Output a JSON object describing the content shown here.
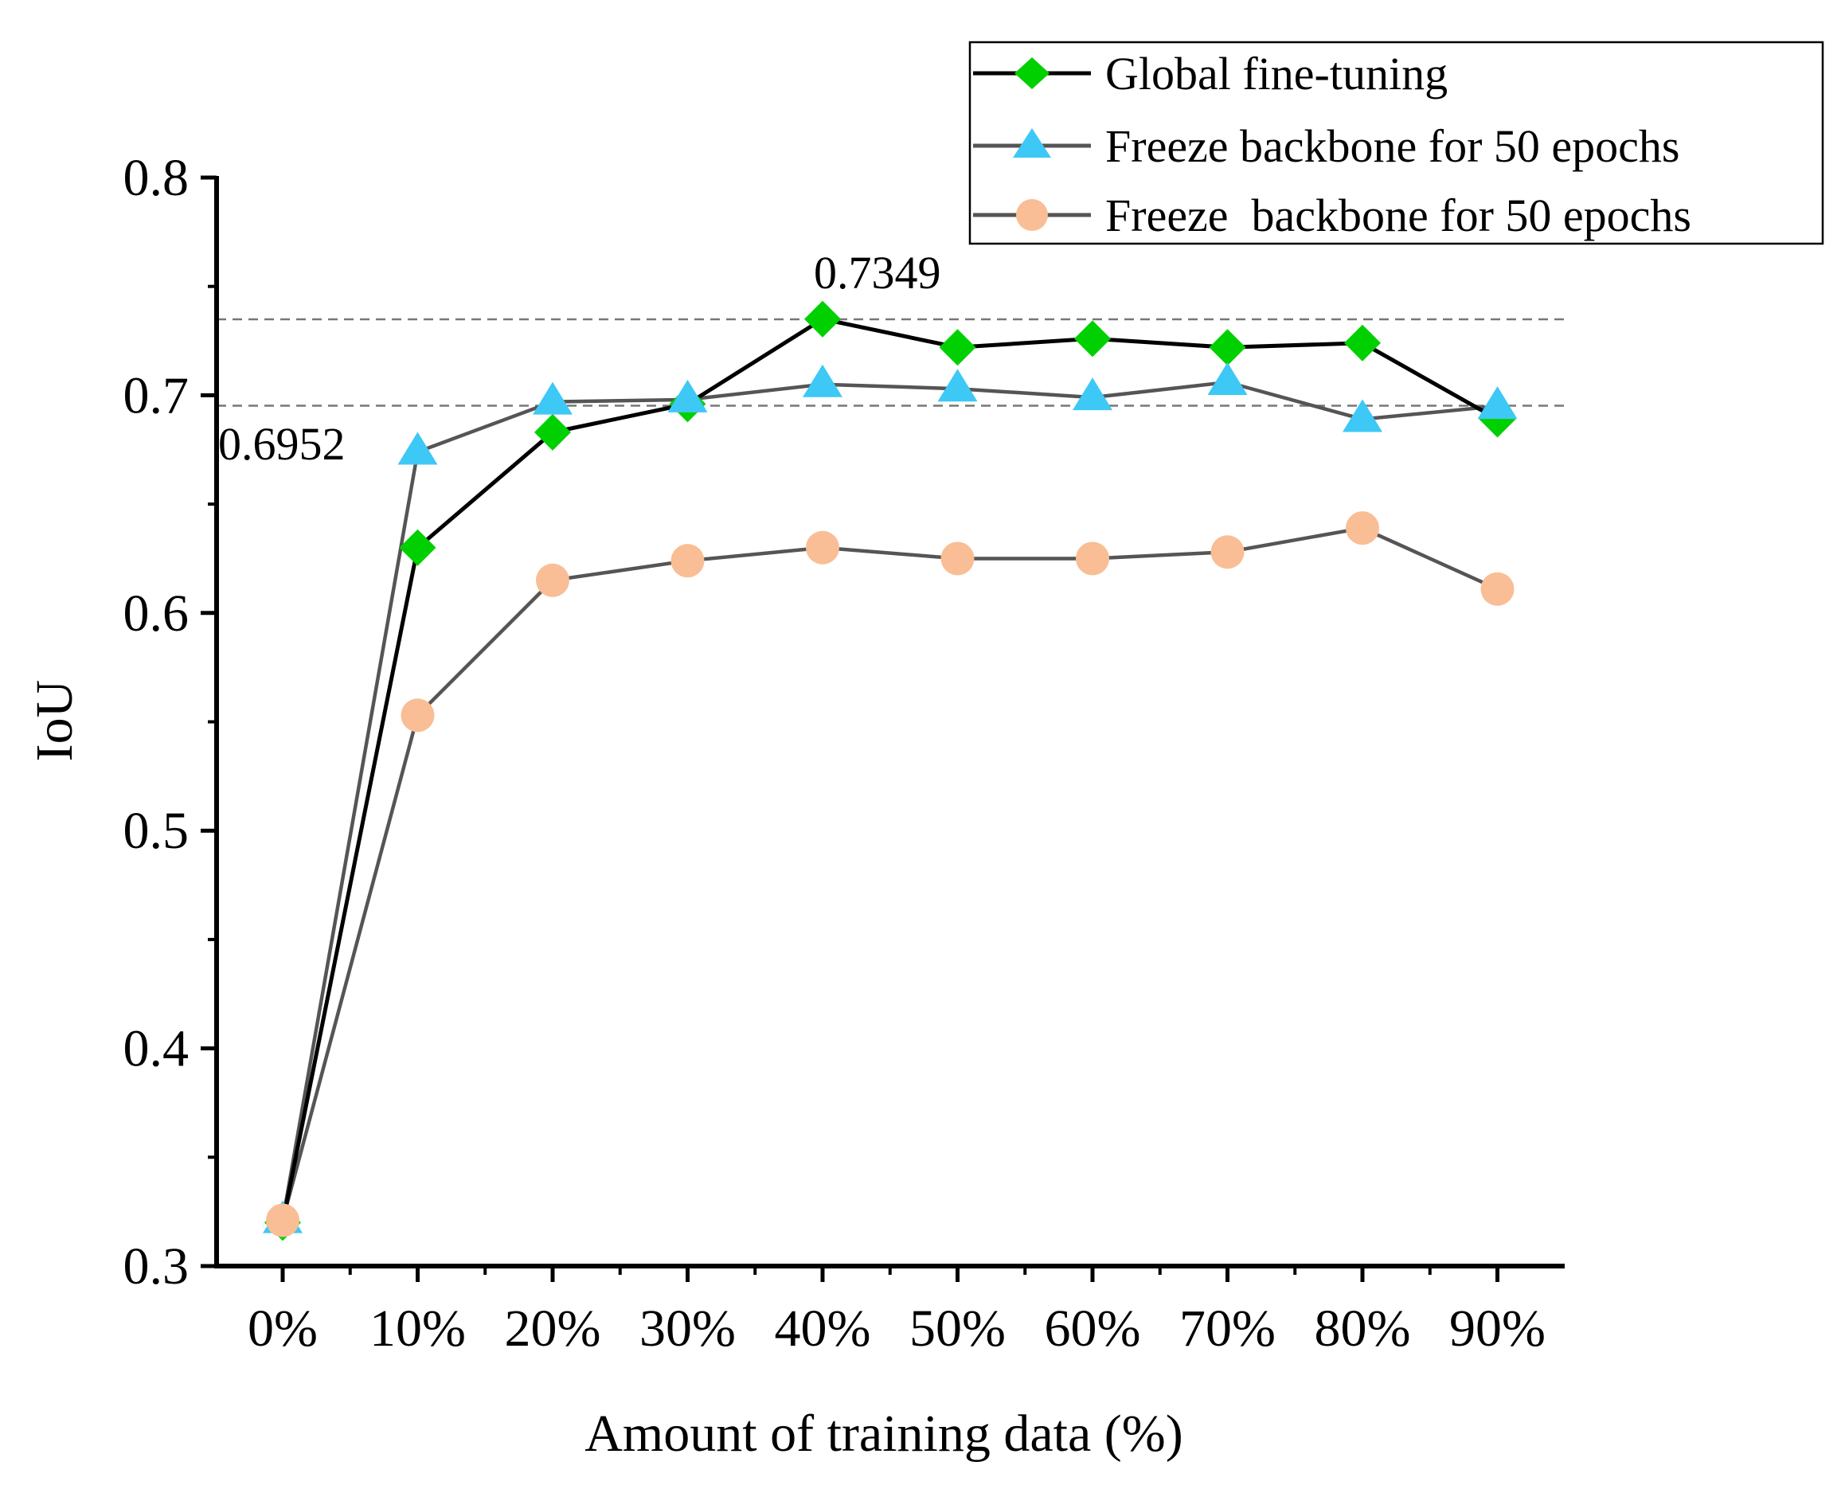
{
  "chart_data": {
    "type": "line",
    "xlabel": "Amount of training data (%)",
    "ylabel": "IoU",
    "categories": [
      "0%",
      "10%",
      "20%",
      "30%",
      "40%",
      "50%",
      "60%",
      "70%",
      "80%",
      "90%"
    ],
    "ylim": [
      0.3,
      0.8
    ],
    "yticks": [
      0.3,
      0.4,
      0.5,
      0.6,
      0.7,
      0.8
    ],
    "ytick_labels": [
      "0.3",
      "0.4",
      "0.5",
      "0.6",
      "0.7",
      "0.8"
    ],
    "grid": false,
    "legend_position": "top-right",
    "series": [
      {
        "name": "Global fine-tuning",
        "marker": "diamond",
        "marker_color": "#00d000",
        "line_color": "#000000",
        "values": [
          0.32,
          0.63,
          0.683,
          0.696,
          0.735,
          0.722,
          0.726,
          0.722,
          0.724,
          0.689
        ]
      },
      {
        "name": "Freeze backbone for 50 epochs",
        "marker": "triangle",
        "marker_color": "#3ec8f5",
        "line_color": "#555555",
        "values": [
          0.321,
          0.674,
          0.697,
          0.698,
          0.705,
          0.703,
          0.699,
          0.706,
          0.689,
          0.695
        ]
      },
      {
        "name": "Freeze  backbone for 50 epochs",
        "marker": "circle",
        "marker_color": "#f9be95",
        "line_color": "#555555",
        "values": [
          0.321,
          0.553,
          0.615,
          0.624,
          0.63,
          0.625,
          0.625,
          0.628,
          0.639,
          0.611
        ]
      }
    ],
    "reference_lines": [
      {
        "value": 0.7349,
        "label": "0.7349"
      },
      {
        "value": 0.6952,
        "label": "0.6952"
      }
    ]
  }
}
